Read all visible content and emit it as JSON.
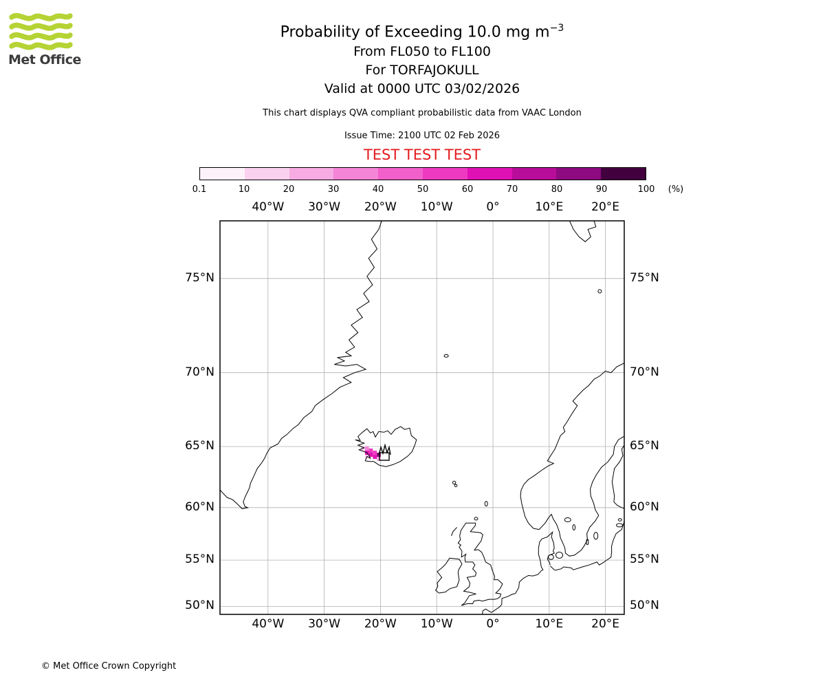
{
  "logo": {
    "brand": "Met Office"
  },
  "colors": {
    "brand_green": "#b5d334",
    "test_red": "#e31a1c",
    "grid_gray": "#b0b0b0"
  },
  "header": {
    "title_main": "Probability of Exceeding 10.0 mg m",
    "title_sup": "−3",
    "subtitle_fl": "From FL050 to FL100",
    "subtitle_volcano": "For TORFAJOKULL",
    "subtitle_valid": "Valid at 0000 UTC 03/02/2026",
    "description": "This chart displays QVA compliant probabilistic data from VAAC London",
    "issue_time": "Issue Time: 2100 UTC 02 Feb 2026",
    "test_banner": "TEST TEST TEST"
  },
  "colorbar": {
    "tick_labels": [
      "0.1",
      "10",
      "20",
      "30",
      "40",
      "50",
      "60",
      "70",
      "80",
      "90",
      "100"
    ],
    "unit": "(%)"
  },
  "map": {
    "lon_values": [
      -40,
      -30,
      -20,
      -10,
      0,
      10,
      20
    ],
    "lon_labels": [
      "40°W",
      "30°W",
      "20°W",
      "10°W",
      "0°",
      "10°E",
      "20°E"
    ],
    "lat_values": [
      75,
      70,
      65,
      60,
      55,
      50
    ],
    "lat_labels": [
      "75°N",
      "70°N",
      "65°N",
      "60°N",
      "55°N",
      "50°N"
    ]
  },
  "footer": {
    "copyright": "© Met Office Crown Copyright"
  },
  "chart_data": {
    "type": "heatmap",
    "title": "Probability of Exceeding 10.0 mg m−3",
    "subtitle": [
      "From FL050 to FL100",
      "For TORFAJOKULL",
      "Valid at 0000 UTC 03/02/2026"
    ],
    "units": "%",
    "projection": "mercator",
    "lon_range": [
      -48.5,
      23.3
    ],
    "lat_range": [
      49.1,
      77.5
    ],
    "x_ticks_lon": [
      -40,
      -30,
      -20,
      -10,
      0,
      10,
      20
    ],
    "y_ticks_lat": [
      75,
      70,
      65,
      60,
      55,
      50
    ],
    "probability_scale": {
      "bin_edges_percent": [
        0.1,
        10,
        20,
        30,
        40,
        50,
        60,
        70,
        80,
        90,
        100
      ],
      "colors": [
        "#fdf2fa",
        "#fad1ee",
        "#f7abe2",
        "#f485d7",
        "#f160cb",
        "#ee3ac0",
        "#e011b4",
        "#b80d9a",
        "#8e0a80",
        "#43003f"
      ]
    },
    "ash_cell_size": {
      "dlon": 0.7,
      "dlat": 0.32
    },
    "ash_cells": [
      {
        "lon": -23.1,
        "lat": 64.85,
        "bin": 1
      },
      {
        "lon": -22.4,
        "lat": 64.85,
        "bin": 3
      },
      {
        "lon": -22.4,
        "lat": 64.53,
        "bin": 6
      },
      {
        "lon": -21.7,
        "lat": 64.69,
        "bin": 5
      },
      {
        "lon": -21.7,
        "lat": 64.37,
        "bin": 6
      },
      {
        "lon": -21.0,
        "lat": 64.53,
        "bin": 5
      },
      {
        "lon": -21.0,
        "lat": 64.21,
        "bin": 6
      },
      {
        "lon": -20.3,
        "lat": 64.37,
        "bin": 8
      },
      {
        "lon": -20.3,
        "lat": 64.05,
        "bin": 2
      },
      {
        "lon": -22.4,
        "lat": 64.21,
        "bin": 1
      }
    ],
    "volcano": {
      "name": "TORFAJOKULL",
      "lon": -19.0,
      "lat": 63.9
    }
  }
}
